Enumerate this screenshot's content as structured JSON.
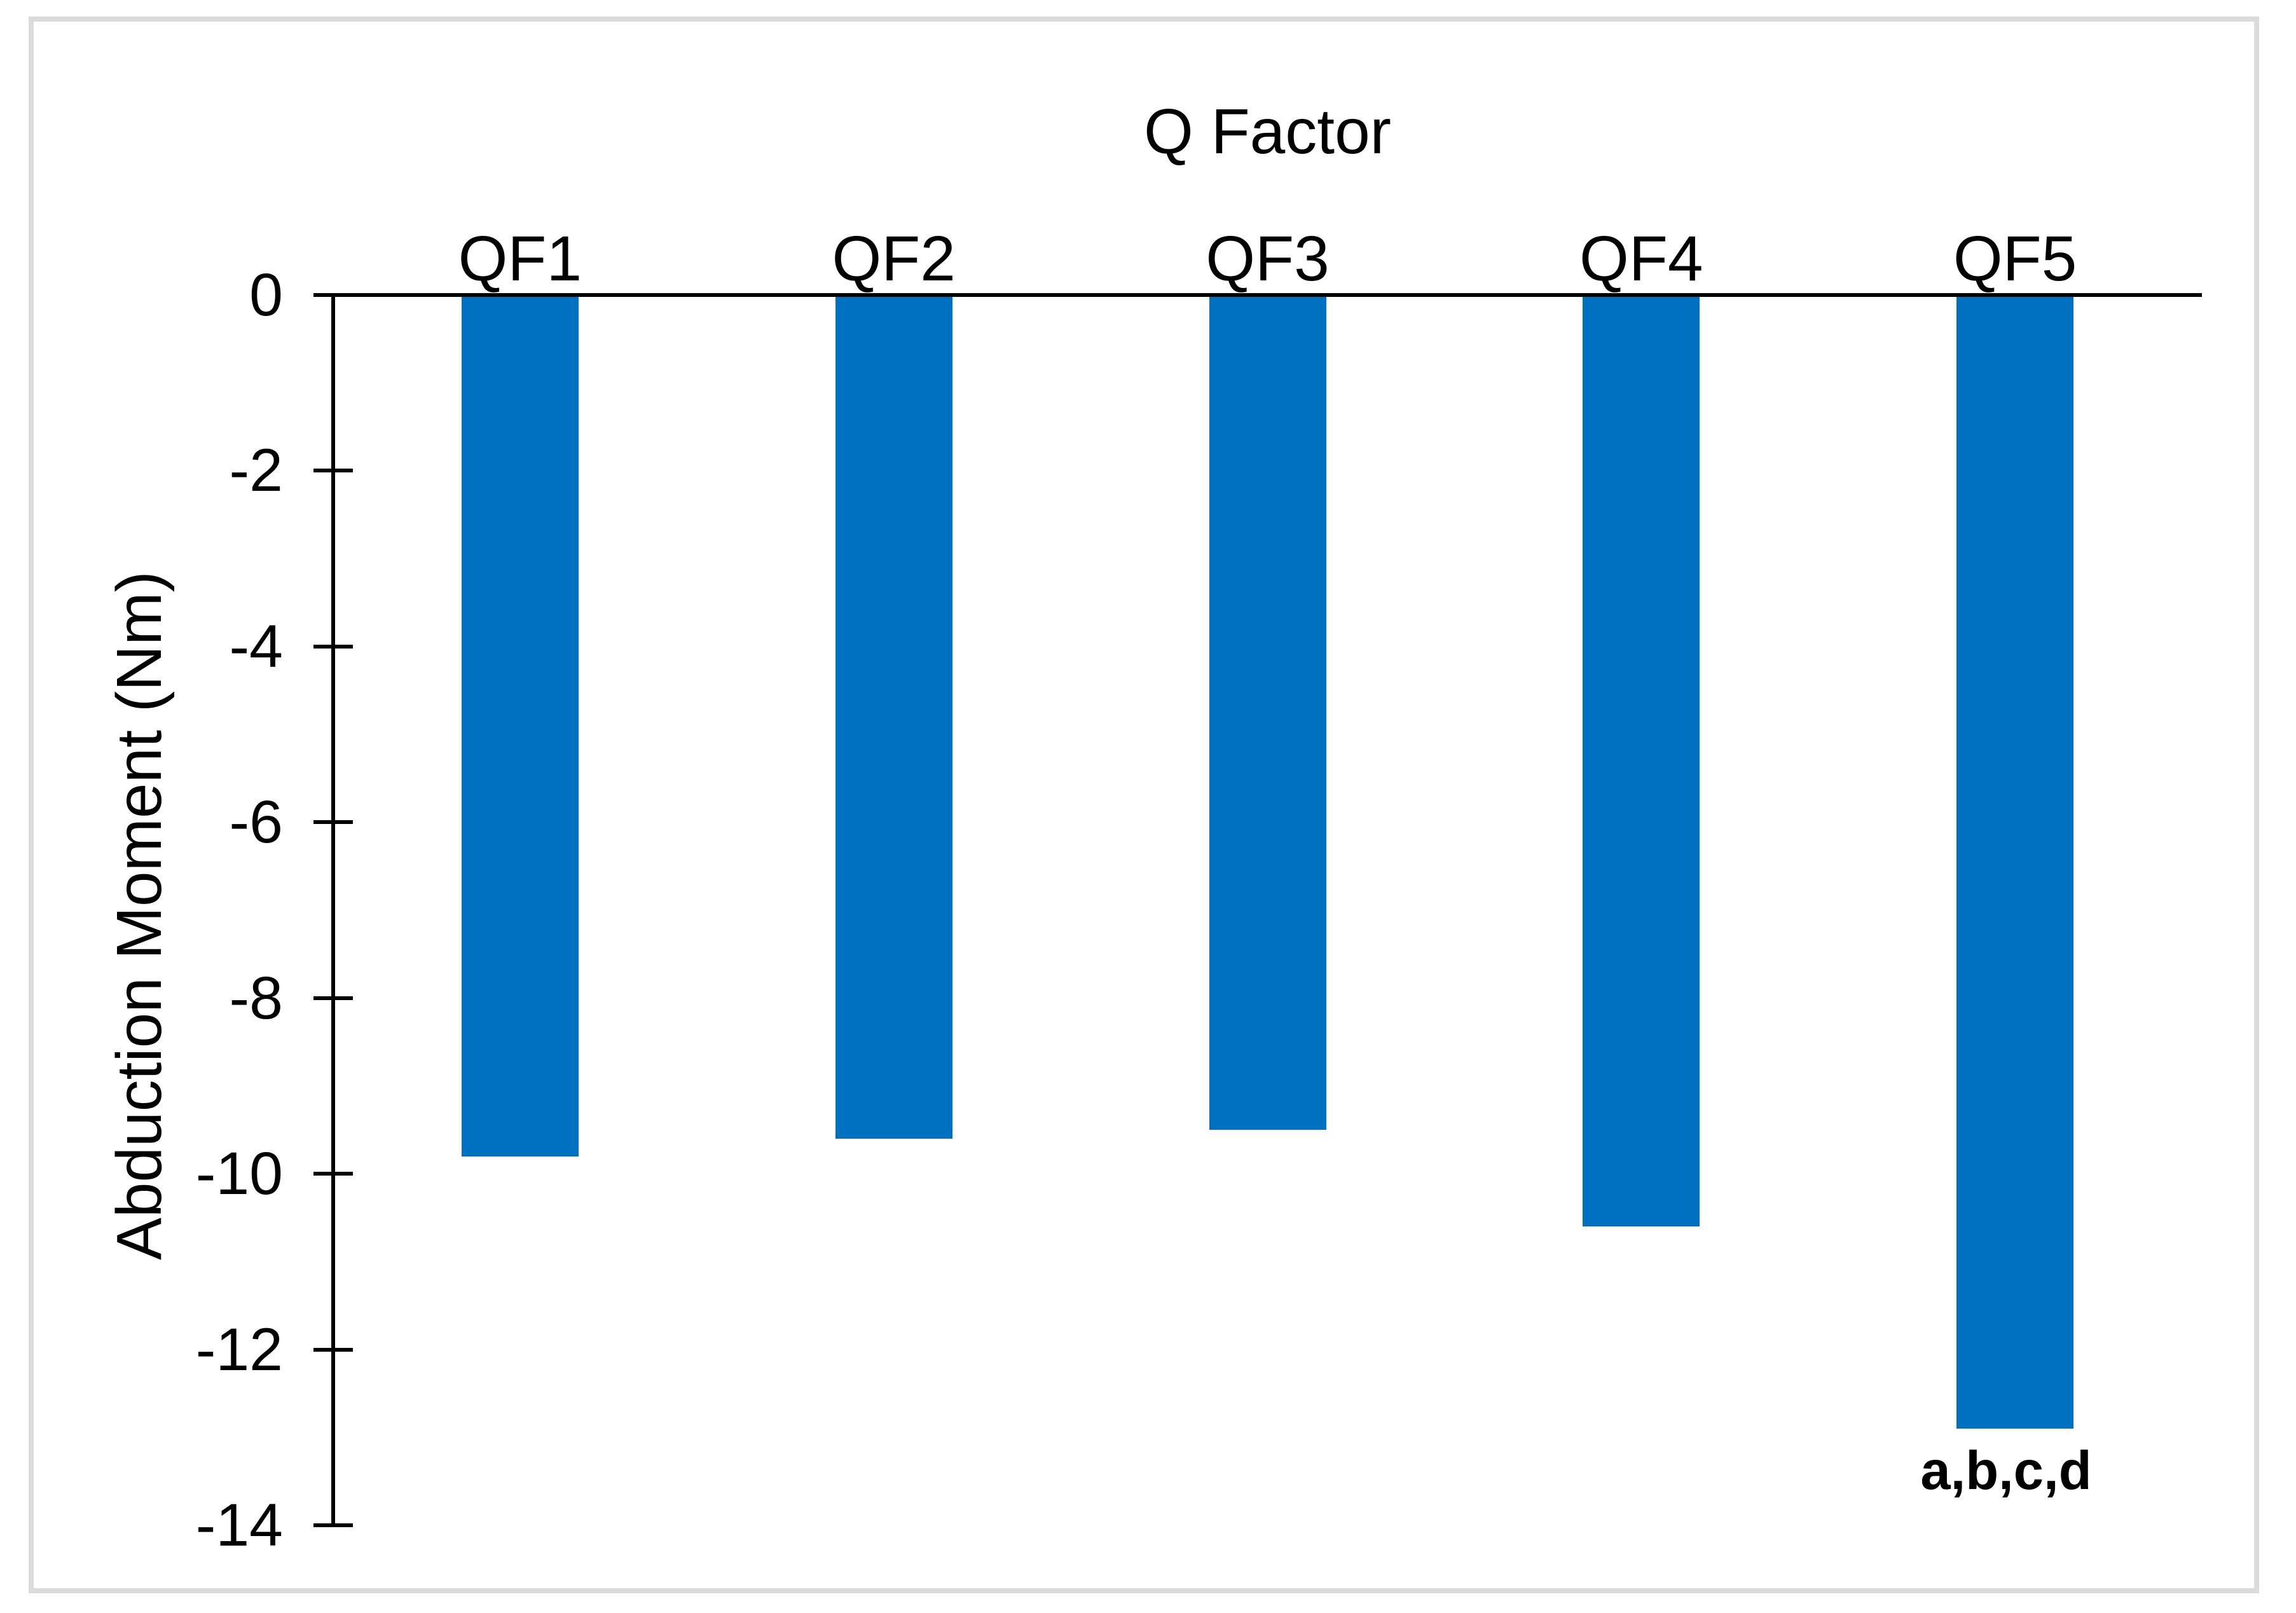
{
  "figure": {
    "background_color": "#ffffff",
    "frame_border_color": "#dbdbdb"
  },
  "chart_data": {
    "type": "bar",
    "title": "Q Factor",
    "categories": [
      "QF1",
      "QF2",
      "QF3",
      "QF4",
      "QF5"
    ],
    "values": [
      -9.8,
      -9.6,
      -9.5,
      -10.6,
      -12.9
    ],
    "xlabel": "",
    "ylabel": "Abduction Moment (Nm)",
    "ylim": [
      -14,
      0
    ],
    "ytick_step": 2,
    "ytick_labels": [
      "0",
      "-2",
      "-4",
      "-6",
      "-8",
      "-10",
      "-12",
      "-14"
    ],
    "bar_color": "#0070C0",
    "axis_color": "#000000",
    "grid": false,
    "legend_position": "none",
    "annotations": [
      {
        "text": "a,b,c,d",
        "category": "QF5",
        "position": "below-bar",
        "bold": true
      }
    ]
  }
}
